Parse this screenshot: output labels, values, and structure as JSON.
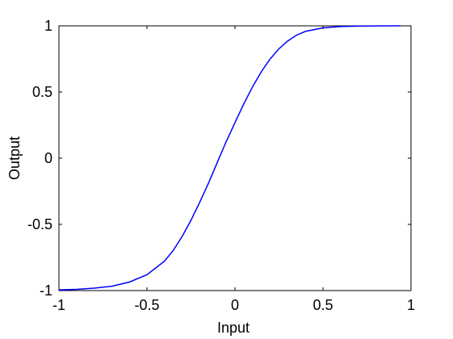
{
  "chart_data": {
    "type": "line",
    "title": "",
    "xlabel": "Input",
    "ylabel": "Output",
    "xlim": [
      -1,
      1
    ],
    "ylim": [
      -1,
      1
    ],
    "xticks": [
      -1,
      -0.5,
      0,
      0.5,
      1
    ],
    "yticks": [
      -1,
      -0.5,
      0,
      0.5,
      1
    ],
    "xtick_labels": [
      "-1",
      "-0.5",
      "0",
      "0.5",
      "1"
    ],
    "ytick_labels": [
      "-1",
      "-0.5",
      "0",
      "0.5",
      "1"
    ],
    "grid": false,
    "line_color": "#0000ff",
    "series": [
      {
        "x": [
          -1,
          -0.9,
          -0.8,
          -0.7,
          -0.6,
          -0.5,
          -0.4,
          -0.35,
          -0.3,
          -0.25,
          -0.2,
          -0.15,
          -0.1,
          -0.05,
          0,
          0.05,
          0.1,
          0.15,
          0.2,
          0.25,
          0.3,
          0.35,
          0.4,
          0.5,
          0.6,
          0.7,
          0.8,
          0.9,
          0.94
        ],
        "y": [
          -0.995,
          -0.991,
          -0.982,
          -0.967,
          -0.936,
          -0.88,
          -0.777,
          -0.695,
          -0.591,
          -0.469,
          -0.332,
          -0.187,
          -0.03,
          0.125,
          0.269,
          0.41,
          0.54,
          0.654,
          0.75,
          0.827,
          0.886,
          0.93,
          0.958,
          0.985,
          0.995,
          0.998,
          0.999,
          1.0,
          1.0
        ]
      }
    ]
  }
}
